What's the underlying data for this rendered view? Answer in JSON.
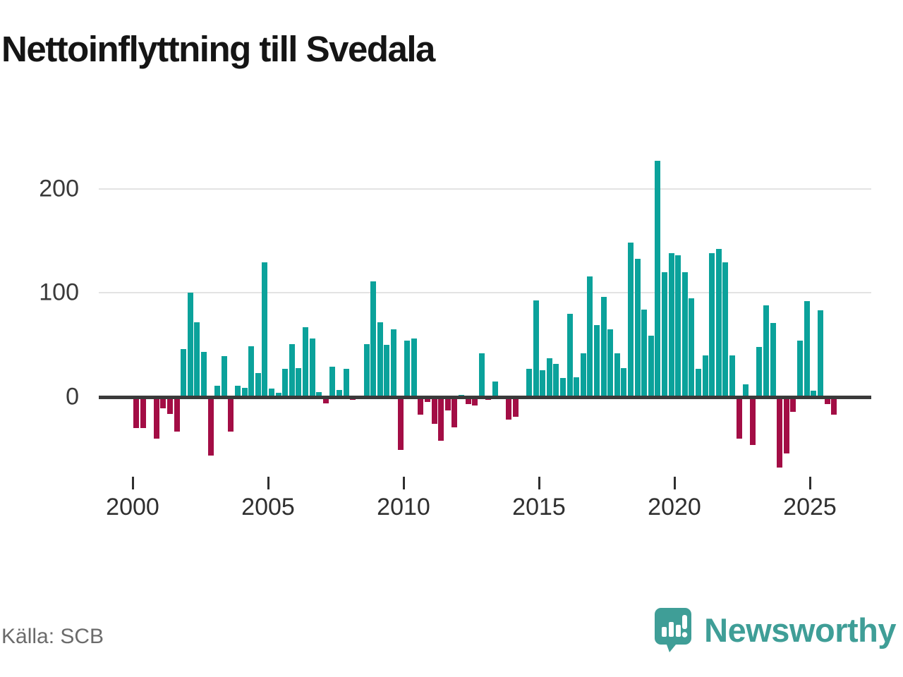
{
  "title": "Nettoinflyttning till Svedala",
  "source": "Källa: SCB",
  "logo": {
    "text": "Newsworthy"
  },
  "colors": {
    "positive": "#0ba29b",
    "negative": "#a30d45",
    "axis": "#3a3a3a",
    "grid": "#e3e3e3",
    "tick": "#2f2f2f",
    "logo": "#3f9e97",
    "source_text": "#6b6b6b",
    "title_text": "#151515"
  },
  "chart_data": {
    "type": "bar",
    "title": "Nettoinflyttning till Svedala",
    "frequency": "quarterly",
    "xlabel": "",
    "ylabel": "",
    "ylim": [
      -80,
      240
    ],
    "grid": "horizontal",
    "y_ticks": [
      0,
      100,
      200
    ],
    "x_tick_years": [
      2000,
      2005,
      2010,
      2015,
      2020,
      2025
    ],
    "series": [
      {
        "year": 2000,
        "quarters": [
          -30,
          -30,
          0,
          -40
        ]
      },
      {
        "year": 2001,
        "quarters": [
          -11,
          -16,
          -33,
          46
        ]
      },
      {
        "year": 2002,
        "quarters": [
          100,
          72,
          43,
          -56
        ]
      },
      {
        "year": 2003,
        "quarters": [
          11,
          39,
          -33,
          11
        ]
      },
      {
        "year": 2004,
        "quarters": [
          9,
          49,
          23,
          129
        ]
      },
      {
        "year": 2005,
        "quarters": [
          8,
          4,
          27,
          51
        ]
      },
      {
        "year": 2006,
        "quarters": [
          28,
          67,
          56,
          5
        ]
      },
      {
        "year": 2007,
        "quarters": [
          -6,
          29,
          7,
          27
        ]
      },
      {
        "year": 2008,
        "quarters": [
          -3,
          -2,
          51,
          111
        ]
      },
      {
        "year": 2009,
        "quarters": [
          72,
          50,
          65,
          -51
        ]
      },
      {
        "year": 2010,
        "quarters": [
          54,
          56,
          -17,
          -5
        ]
      },
      {
        "year": 2011,
        "quarters": [
          -26,
          -42,
          -13,
          -29
        ]
      },
      {
        "year": 2012,
        "quarters": [
          2,
          -7,
          -8,
          42
        ]
      },
      {
        "year": 2013,
        "quarters": [
          -3,
          15,
          0,
          -22
        ]
      },
      {
        "year": 2014,
        "quarters": [
          -19,
          0,
          27,
          93
        ]
      },
      {
        "year": 2015,
        "quarters": [
          26,
          37,
          32,
          18
        ]
      },
      {
        "year": 2016,
        "quarters": [
          80,
          19,
          42,
          116
        ]
      },
      {
        "year": 2017,
        "quarters": [
          69,
          96,
          65,
          42
        ]
      },
      {
        "year": 2018,
        "quarters": [
          28,
          148,
          133,
          84
        ]
      },
      {
        "year": 2019,
        "quarters": [
          59,
          227,
          120,
          138
        ]
      },
      {
        "year": 2020,
        "quarters": [
          136,
          120,
          95,
          27
        ]
      },
      {
        "year": 2021,
        "quarters": [
          40,
          138,
          142,
          129
        ]
      },
      {
        "year": 2022,
        "quarters": [
          40,
          -40,
          12,
          -46
        ]
      },
      {
        "year": 2023,
        "quarters": [
          48,
          88,
          71,
          -68
        ]
      },
      {
        "year": 2024,
        "quarters": [
          -54,
          -14,
          54,
          92
        ]
      },
      {
        "year": 2025,
        "quarters": [
          6,
          83,
          -7,
          -17
        ]
      }
    ]
  }
}
